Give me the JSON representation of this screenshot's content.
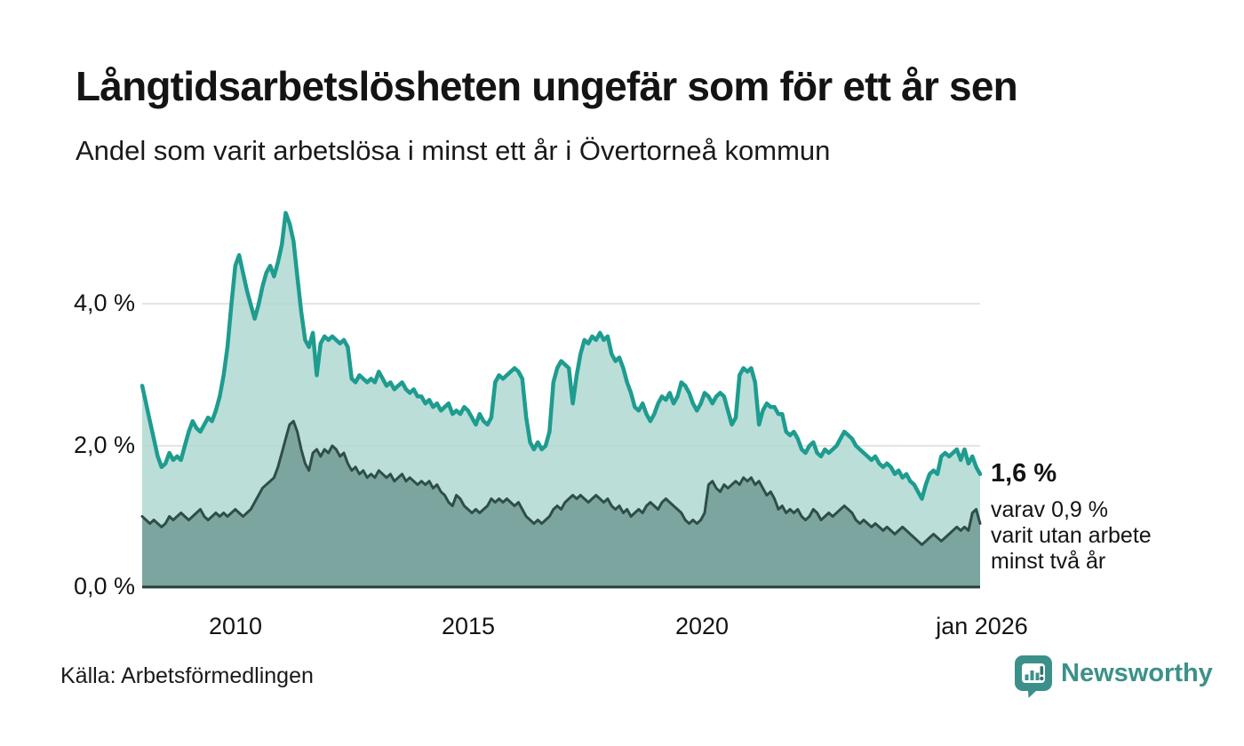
{
  "header": {
    "title": "Långtidsarbetslösheten ungefär som för ett år sen",
    "subtitle": "Andel som varit arbetslösa i minst ett år i Övertorneå kommun"
  },
  "annotation": {
    "value": "1,6 %",
    "line1": "varav 0,9 %",
    "line2": "varit utan arbete",
    "line3": "minst två år"
  },
  "axes": {
    "y_ticks": [
      {
        "label": "4,0 %",
        "value": 4.0
      },
      {
        "label": "2,0 %",
        "value": 2.0
      },
      {
        "label": "0,0 %",
        "value": 0.0
      }
    ],
    "x_ticks": [
      {
        "label": "2010"
      },
      {
        "label": "2015"
      },
      {
        "label": "2020"
      },
      {
        "label": "jan 2026"
      }
    ]
  },
  "footer": {
    "source": "Källa: Arbetsförmedlingen",
    "brand": "Newsworthy"
  },
  "colors": {
    "teal_line": "#1E9C8F",
    "light_fill": "#AFD8D2",
    "dark_fill": "#7CA59F",
    "dark_line": "#2F4E49",
    "grid": "#E4E4E4",
    "baseline": "#263D39",
    "brand_teal": "#3B9189",
    "text": "#141414"
  },
  "chart_data": {
    "type": "area",
    "title": "Långtidsarbetslösheten ungefär som för ett år sen",
    "subtitle": "Andel som varit arbetslösa i minst ett år i Övertorneå kommun",
    "unit": "%",
    "frequency": "monthly",
    "x_start": "jan 2008",
    "x_end": "jan 2026",
    "ylim": [
      0,
      5.5
    ],
    "grid_values": [
      2.0,
      4.0
    ],
    "legend_position": "none",
    "latest": {
      "minst_ett_ar": 1.6,
      "minst_tva_ar": 0.9
    },
    "series": [
      {
        "name": "Andel arbetslösa minst ett år",
        "values": [
          2.85,
          2.6,
          2.35,
          2.1,
          1.85,
          1.7,
          1.75,
          1.9,
          1.8,
          1.85,
          1.8,
          2.0,
          2.2,
          2.35,
          2.25,
          2.2,
          2.3,
          2.4,
          2.35,
          2.5,
          2.7,
          3.0,
          3.4,
          4.0,
          4.55,
          4.7,
          4.45,
          4.2,
          4.0,
          3.8,
          4.0,
          4.25,
          4.45,
          4.55,
          4.4,
          4.6,
          4.85,
          5.3,
          5.15,
          4.9,
          4.4,
          3.9,
          3.5,
          3.4,
          3.6,
          3.0,
          3.45,
          3.55,
          3.5,
          3.55,
          3.5,
          3.45,
          3.5,
          3.4,
          2.95,
          2.9,
          3.0,
          2.95,
          2.9,
          2.95,
          2.9,
          3.05,
          2.95,
          2.85,
          2.9,
          2.8,
          2.85,
          2.9,
          2.8,
          2.75,
          2.8,
          2.7,
          2.7,
          2.6,
          2.65,
          2.55,
          2.6,
          2.5,
          2.55,
          2.6,
          2.45,
          2.5,
          2.45,
          2.55,
          2.5,
          2.4,
          2.3,
          2.45,
          2.35,
          2.3,
          2.4,
          2.9,
          3.0,
          2.95,
          3.0,
          3.05,
          3.1,
          3.05,
          2.95,
          2.4,
          2.05,
          1.95,
          2.05,
          1.95,
          2.0,
          2.2,
          2.9,
          3.1,
          3.2,
          3.15,
          3.1,
          2.6,
          3.0,
          3.3,
          3.5,
          3.45,
          3.55,
          3.5,
          3.6,
          3.5,
          3.55,
          3.3,
          3.2,
          3.25,
          3.1,
          2.9,
          2.75,
          2.55,
          2.5,
          2.6,
          2.45,
          2.35,
          2.45,
          2.6,
          2.7,
          2.65,
          2.75,
          2.6,
          2.7,
          2.9,
          2.85,
          2.75,
          2.6,
          2.5,
          2.6,
          2.75,
          2.7,
          2.6,
          2.7,
          2.75,
          2.7,
          2.5,
          2.3,
          2.4,
          3.0,
          3.1,
          3.05,
          3.1,
          2.9,
          2.3,
          2.5,
          2.6,
          2.55,
          2.55,
          2.45,
          2.45,
          2.2,
          2.15,
          2.2,
          2.1,
          1.95,
          1.9,
          2.0,
          2.05,
          1.9,
          1.85,
          1.95,
          1.9,
          1.95,
          2.0,
          2.1,
          2.2,
          2.15,
          2.1,
          2.0,
          1.95,
          1.9,
          1.85,
          1.8,
          1.85,
          1.75,
          1.7,
          1.75,
          1.7,
          1.6,
          1.65,
          1.55,
          1.6,
          1.5,
          1.45,
          1.35,
          1.25,
          1.45,
          1.6,
          1.65,
          1.6,
          1.85,
          1.9,
          1.85,
          1.9,
          1.95,
          1.8,
          1.95,
          1.75,
          1.85,
          1.7,
          1.6
        ]
      },
      {
        "name": "varav arbetslösa minst två år",
        "values": [
          1.0,
          0.95,
          0.9,
          0.95,
          0.9,
          0.85,
          0.9,
          1.0,
          0.95,
          1.0,
          1.05,
          1.0,
          0.95,
          1.0,
          1.05,
          1.1,
          1.0,
          0.95,
          1.0,
          1.05,
          1.0,
          1.05,
          1.0,
          1.05,
          1.1,
          1.05,
          1.0,
          1.05,
          1.1,
          1.2,
          1.3,
          1.4,
          1.45,
          1.5,
          1.55,
          1.7,
          1.9,
          2.1,
          2.3,
          2.35,
          2.2,
          1.95,
          1.75,
          1.65,
          1.9,
          1.95,
          1.85,
          1.95,
          1.9,
          2.0,
          1.95,
          1.85,
          1.9,
          1.75,
          1.65,
          1.7,
          1.6,
          1.65,
          1.55,
          1.6,
          1.55,
          1.65,
          1.6,
          1.55,
          1.6,
          1.5,
          1.55,
          1.6,
          1.5,
          1.55,
          1.5,
          1.45,
          1.5,
          1.45,
          1.5,
          1.4,
          1.45,
          1.35,
          1.3,
          1.2,
          1.15,
          1.3,
          1.25,
          1.15,
          1.1,
          1.05,
          1.1,
          1.05,
          1.1,
          1.15,
          1.25,
          1.2,
          1.25,
          1.2,
          1.25,
          1.2,
          1.15,
          1.2,
          1.1,
          1.0,
          0.95,
          0.9,
          0.95,
          0.9,
          0.95,
          1.0,
          1.1,
          1.15,
          1.1,
          1.2,
          1.25,
          1.3,
          1.25,
          1.3,
          1.25,
          1.2,
          1.25,
          1.3,
          1.25,
          1.2,
          1.25,
          1.15,
          1.1,
          1.15,
          1.05,
          1.1,
          1.0,
          1.05,
          1.1,
          1.05,
          1.15,
          1.2,
          1.15,
          1.1,
          1.2,
          1.25,
          1.2,
          1.15,
          1.1,
          1.05,
          0.95,
          0.9,
          0.95,
          0.9,
          0.95,
          1.05,
          1.45,
          1.5,
          1.4,
          1.35,
          1.45,
          1.4,
          1.45,
          1.5,
          1.45,
          1.55,
          1.5,
          1.55,
          1.45,
          1.5,
          1.4,
          1.3,
          1.35,
          1.25,
          1.1,
          1.15,
          1.05,
          1.1,
          1.05,
          1.1,
          1.0,
          0.95,
          1.0,
          1.1,
          1.05,
          0.95,
          1.0,
          1.05,
          1.0,
          1.05,
          1.1,
          1.15,
          1.1,
          1.05,
          0.95,
          0.9,
          0.95,
          0.9,
          0.85,
          0.9,
          0.85,
          0.8,
          0.85,
          0.8,
          0.75,
          0.8,
          0.85,
          0.8,
          0.75,
          0.7,
          0.65,
          0.6,
          0.65,
          0.7,
          0.75,
          0.7,
          0.65,
          0.7,
          0.75,
          0.8,
          0.85,
          0.8,
          0.85,
          0.8,
          1.05,
          1.1,
          0.9
        ]
      }
    ]
  }
}
